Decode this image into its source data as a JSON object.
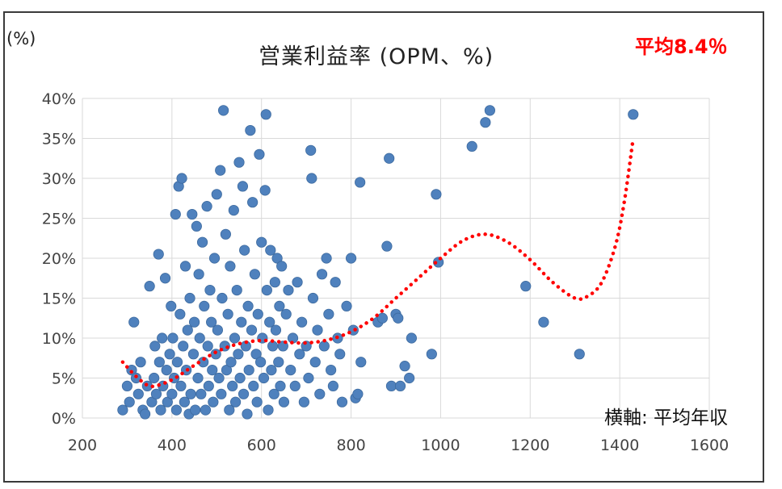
{
  "chart_data": {
    "type": "scatter",
    "title": "営業利益率 (OPM、%)",
    "y_unit_label": "(%)",
    "average_label": "平均8.4％",
    "xlabel": "横軸: 平均年収",
    "ylabel": "(%)",
    "xlim": [
      200,
      1600
    ],
    "ylim": [
      0,
      40
    ],
    "x_ticks": [
      "200",
      "400",
      "600",
      "800",
      "1000",
      "1200",
      "1400",
      "1600"
    ],
    "y_ticks": [
      "0%",
      "5%",
      "10%",
      "15%",
      "20%",
      "25%",
      "30%",
      "35%",
      "40%"
    ],
    "grid": true,
    "colors": {
      "points": "#4f81bd",
      "point_edge": "#3d6a9e",
      "trend": "#ff0000",
      "grid": "#d9d9d9"
    },
    "series": [
      {
        "name": "companies",
        "points": [
          [
            290,
            1
          ],
          [
            300,
            4
          ],
          [
            305,
            2
          ],
          [
            310,
            6
          ],
          [
            315,
            12
          ],
          [
            320,
            5
          ],
          [
            325,
            3
          ],
          [
            330,
            7
          ],
          [
            335,
            1
          ],
          [
            340,
            0.5
          ],
          [
            345,
            4
          ],
          [
            350,
            16.5
          ],
          [
            355,
            2
          ],
          [
            360,
            5
          ],
          [
            362,
            9
          ],
          [
            365,
            3
          ],
          [
            370,
            20.5
          ],
          [
            372,
            7
          ],
          [
            375,
            1
          ],
          [
            378,
            10
          ],
          [
            380,
            4
          ],
          [
            385,
            17.5
          ],
          [
            388,
            6
          ],
          [
            390,
            2
          ],
          [
            395,
            8
          ],
          [
            398,
            14
          ],
          [
            400,
            3
          ],
          [
            402,
            10
          ],
          [
            405,
            5
          ],
          [
            408,
            25.5
          ],
          [
            410,
            1
          ],
          [
            412,
            7
          ],
          [
            415,
            29
          ],
          [
            418,
            13
          ],
          [
            420,
            4
          ],
          [
            422,
            30
          ],
          [
            425,
            9
          ],
          [
            428,
            2
          ],
          [
            430,
            19
          ],
          [
            432,
            6
          ],
          [
            435,
            11
          ],
          [
            438,
            0.5
          ],
          [
            440,
            15
          ],
          [
            442,
            3
          ],
          [
            445,
            25.5
          ],
          [
            448,
            8
          ],
          [
            450,
            12
          ],
          [
            452,
            1
          ],
          [
            455,
            24
          ],
          [
            458,
            5
          ],
          [
            460,
            18
          ],
          [
            462,
            10
          ],
          [
            465,
            3
          ],
          [
            468,
            22
          ],
          [
            470,
            7
          ],
          [
            472,
            14
          ],
          [
            475,
            1
          ],
          [
            478,
            26.5
          ],
          [
            480,
            9
          ],
          [
            482,
            4
          ],
          [
            485,
            16
          ],
          [
            488,
            12
          ],
          [
            490,
            6
          ],
          [
            492,
            2
          ],
          [
            495,
            20
          ],
          [
            498,
            8
          ],
          [
            500,
            28
          ],
          [
            502,
            11
          ],
          [
            505,
            5
          ],
          [
            508,
            31
          ],
          [
            510,
            3
          ],
          [
            512,
            15
          ],
          [
            515,
            38.5
          ],
          [
            518,
            9
          ],
          [
            520,
            23
          ],
          [
            522,
            6
          ],
          [
            525,
            13
          ],
          [
            528,
            1
          ],
          [
            530,
            19
          ],
          [
            532,
            7
          ],
          [
            535,
            4
          ],
          [
            538,
            26
          ],
          [
            540,
            10
          ],
          [
            542,
            2
          ],
          [
            545,
            16
          ],
          [
            548,
            8
          ],
          [
            550,
            32
          ],
          [
            552,
            5
          ],
          [
            555,
            12
          ],
          [
            558,
            29
          ],
          [
            560,
            3
          ],
          [
            562,
            21
          ],
          [
            565,
            9
          ],
          [
            568,
            0.5
          ],
          [
            570,
            14
          ],
          [
            572,
            6
          ],
          [
            575,
            36
          ],
          [
            578,
            11
          ],
          [
            580,
            27
          ],
          [
            582,
            4
          ],
          [
            585,
            18
          ],
          [
            588,
            8
          ],
          [
            590,
            2
          ],
          [
            592,
            13
          ],
          [
            595,
            33
          ],
          [
            598,
            7
          ],
          [
            600,
            22
          ],
          [
            602,
            10
          ],
          [
            605,
            5
          ],
          [
            608,
            28.5
          ],
          [
            610,
            38
          ],
          [
            612,
            16
          ],
          [
            615,
            1
          ],
          [
            618,
            12
          ],
          [
            620,
            21
          ],
          [
            622,
            6
          ],
          [
            625,
            9
          ],
          [
            628,
            3
          ],
          [
            630,
            17
          ],
          [
            632,
            11
          ],
          [
            635,
            20
          ],
          [
            638,
            7
          ],
          [
            640,
            14
          ],
          [
            642,
            4
          ],
          [
            645,
            19
          ],
          [
            648,
            9
          ],
          [
            650,
            2
          ],
          [
            655,
            13
          ],
          [
            660,
            16
          ],
          [
            665,
            6
          ],
          [
            670,
            10
          ],
          [
            675,
            4
          ],
          [
            680,
            17
          ],
          [
            685,
            8
          ],
          [
            690,
            12
          ],
          [
            695,
            2
          ],
          [
            700,
            9
          ],
          [
            705,
            5
          ],
          [
            710,
            33.5
          ],
          [
            712,
            30
          ],
          [
            715,
            15
          ],
          [
            720,
            7
          ],
          [
            725,
            11
          ],
          [
            730,
            3
          ],
          [
            735,
            18
          ],
          [
            740,
            9
          ],
          [
            745,
            20
          ],
          [
            750,
            13
          ],
          [
            755,
            6
          ],
          [
            760,
            4
          ],
          [
            765,
            17
          ],
          [
            770,
            10
          ],
          [
            775,
            8
          ],
          [
            780,
            2
          ],
          [
            790,
            14
          ],
          [
            800,
            20
          ],
          [
            805,
            11
          ],
          [
            810,
            2.5
          ],
          [
            815,
            3
          ],
          [
            820,
            29.5
          ],
          [
            822,
            7
          ],
          [
            860,
            12
          ],
          [
            870,
            12.5
          ],
          [
            880,
            21.5
          ],
          [
            885,
            32.5
          ],
          [
            890,
            4
          ],
          [
            900,
            13
          ],
          [
            905,
            12.5
          ],
          [
            910,
            4
          ],
          [
            920,
            6.5
          ],
          [
            930,
            5
          ],
          [
            935,
            10
          ],
          [
            980,
            8
          ],
          [
            990,
            28
          ],
          [
            995,
            19.5
          ],
          [
            1070,
            34
          ],
          [
            1100,
            37
          ],
          [
            1110,
            38.5
          ],
          [
            1190,
            16.5
          ],
          [
            1230,
            12
          ],
          [
            1310,
            8
          ],
          [
            1430,
            38
          ]
        ]
      },
      {
        "name": "trend",
        "style": "dotted",
        "points": [
          [
            290,
            7
          ],
          [
            320,
            5.2
          ],
          [
            350,
            4
          ],
          [
            380,
            4.3
          ],
          [
            410,
            5.1
          ],
          [
            450,
            6.6
          ],
          [
            500,
            8.3
          ],
          [
            550,
            9.3
          ],
          [
            600,
            9.7
          ],
          [
            650,
            9.5
          ],
          [
            700,
            9.4
          ],
          [
            750,
            9.8
          ],
          [
            800,
            10.8
          ],
          [
            850,
            12.5
          ],
          [
            900,
            15
          ],
          [
            950,
            17.5
          ],
          [
            1000,
            20
          ],
          [
            1050,
            22.2
          ],
          [
            1100,
            23
          ],
          [
            1150,
            22
          ],
          [
            1200,
            19.8
          ],
          [
            1250,
            17
          ],
          [
            1300,
            15
          ],
          [
            1330,
            15.3
          ],
          [
            1360,
            17
          ],
          [
            1390,
            21.5
          ],
          [
            1410,
            27
          ],
          [
            1430,
            35
          ]
        ]
      }
    ]
  }
}
